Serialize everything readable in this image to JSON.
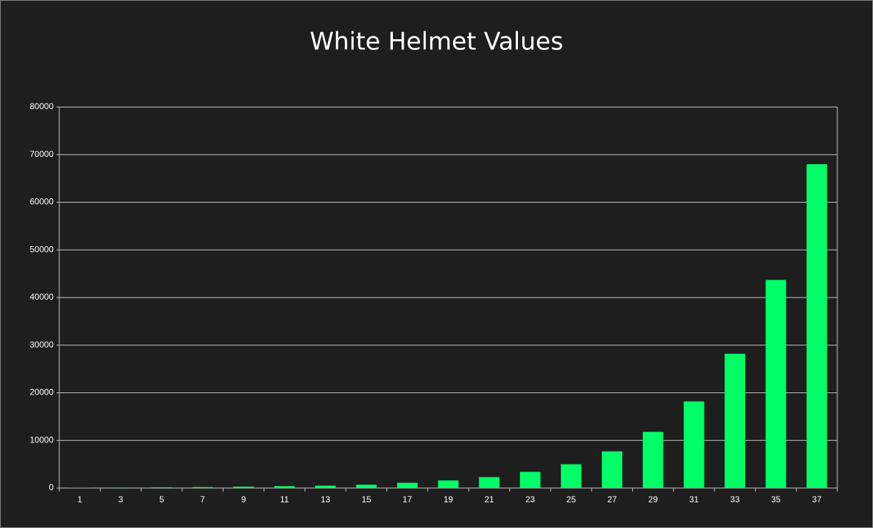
{
  "chart_data": {
    "type": "bar",
    "title": "White Helmet Values",
    "categories": [
      "1",
      "3",
      "5",
      "7",
      "9",
      "11",
      "13",
      "15",
      "17",
      "19",
      "21",
      "23",
      "25",
      "27",
      "29",
      "31",
      "33",
      "35",
      "37"
    ],
    "values": [
      60,
      100,
      150,
      200,
      300,
      400,
      500,
      700,
      1100,
      1600,
      2300,
      3400,
      5000,
      7700,
      11800,
      18200,
      28200,
      43700,
      68000
    ],
    "color": "#00ff66",
    "ylim": [
      0,
      80000
    ],
    "yticks": [
      0,
      10000,
      20000,
      30000,
      40000,
      50000,
      60000,
      70000,
      80000
    ],
    "grid": true
  }
}
